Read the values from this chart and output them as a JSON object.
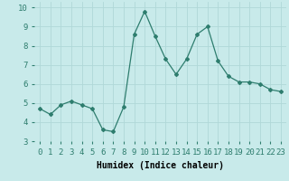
{
  "x": [
    0,
    1,
    2,
    3,
    4,
    5,
    6,
    7,
    8,
    9,
    10,
    11,
    12,
    13,
    14,
    15,
    16,
    17,
    18,
    19,
    20,
    21,
    22,
    23
  ],
  "y": [
    4.7,
    4.4,
    4.9,
    5.1,
    4.9,
    4.7,
    3.6,
    3.5,
    4.8,
    8.6,
    9.8,
    8.5,
    7.3,
    6.5,
    7.3,
    8.6,
    9.0,
    7.2,
    6.4,
    6.1,
    6.1,
    6.0,
    5.7,
    5.6
  ],
  "xlabel": "Humidex (Indice chaleur)",
  "xlim": [
    -0.5,
    23.5
  ],
  "ylim": [
    3,
    10.3
  ],
  "yticks": [
    3,
    4,
    5,
    6,
    7,
    8,
    9,
    10
  ],
  "xticks": [
    0,
    1,
    2,
    3,
    4,
    5,
    6,
    7,
    8,
    9,
    10,
    11,
    12,
    13,
    14,
    15,
    16,
    17,
    18,
    19,
    20,
    21,
    22,
    23
  ],
  "line_color": "#2e7d6e",
  "marker": "D",
  "marker_size": 2.0,
  "bg_color": "#c8eaea",
  "grid_color": "#b0d8d8",
  "xlabel_fontsize": 7,
  "tick_fontsize": 6.5
}
